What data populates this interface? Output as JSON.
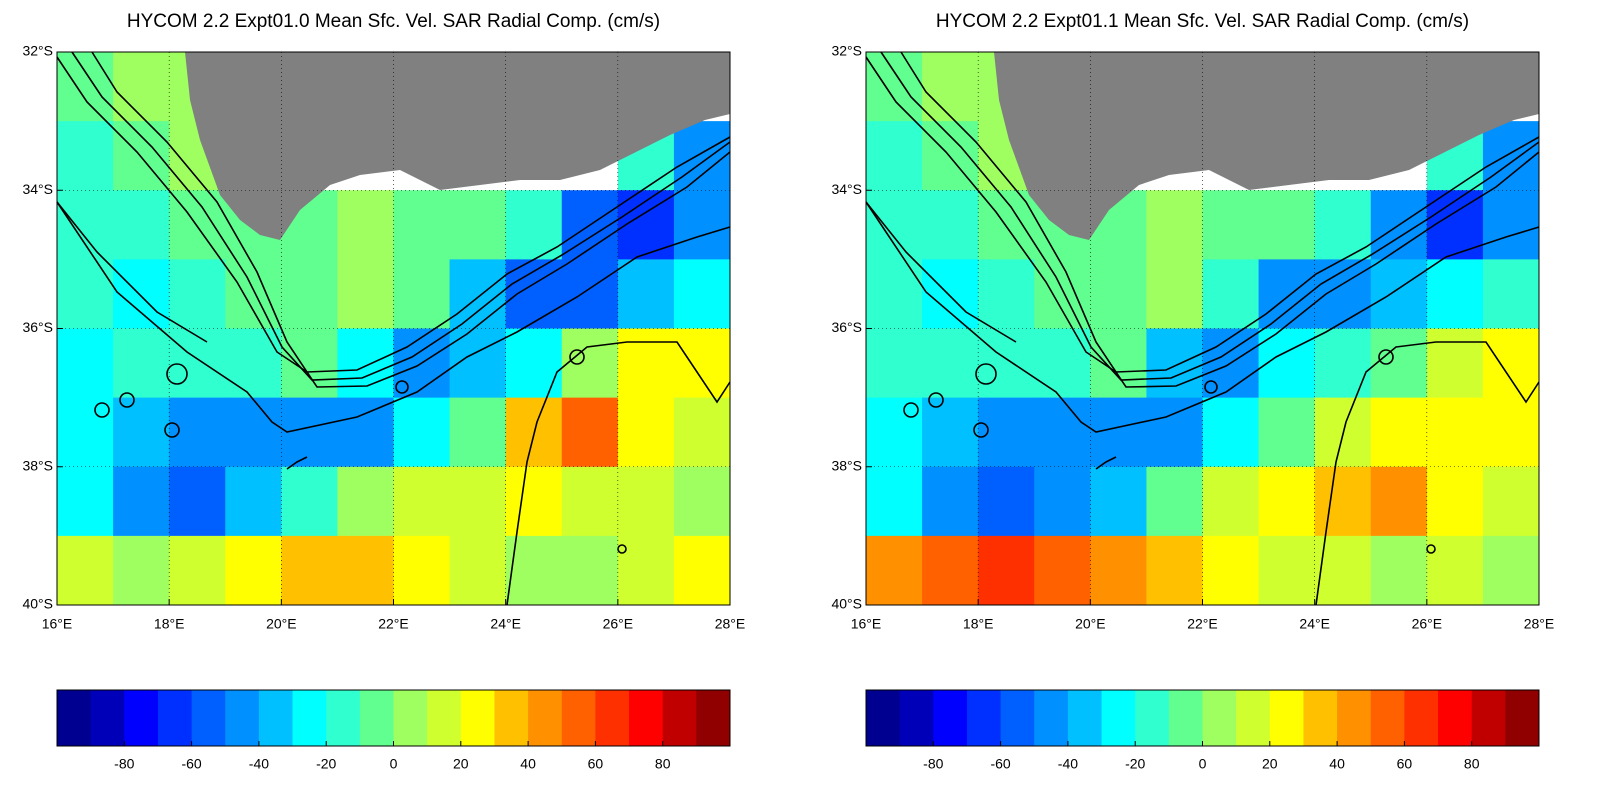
{
  "chart_data": [
    {
      "type": "heatmap",
      "title": "HYCOM 2.2 Expt01.0 Mean Sfc. Vel. SAR Radial Comp. (cm/s)",
      "xlim": [
        16,
        28
      ],
      "ylim": [
        -40,
        -32
      ],
      "grid": true,
      "xticks": [
        {
          "value": 16,
          "label": "16°E"
        },
        {
          "value": 18,
          "label": "18°E"
        },
        {
          "value": 20,
          "label": "20°E"
        },
        {
          "value": 22,
          "label": "22°E"
        },
        {
          "value": 24,
          "label": "24°E"
        },
        {
          "value": 26,
          "label": "26°E"
        },
        {
          "value": 28,
          "label": "28°E"
        }
      ],
      "yticks": [
        {
          "value": -32,
          "label": "32°S"
        },
        {
          "value": -34,
          "label": "34°S"
        },
        {
          "value": -36,
          "label": "36°S"
        },
        {
          "value": -38,
          "label": "38°S"
        },
        {
          "value": -40,
          "label": "40°S"
        }
      ],
      "values": [
        [
          -10,
          0,
          0,
          null,
          null,
          null,
          null,
          null,
          null,
          null,
          null,
          null
        ],
        [
          -15,
          -10,
          0,
          null,
          null,
          null,
          null,
          null,
          null,
          null,
          -20,
          -50
        ],
        [
          -20,
          -20,
          -10,
          -5,
          -5,
          0,
          -5,
          -10,
          -20,
          -60,
          -70,
          -50
        ],
        [
          -20,
          -25,
          -20,
          -10,
          -5,
          0,
          -10,
          -40,
          -60,
          -60,
          -40,
          -30
        ],
        [
          -25,
          -20,
          -20,
          -20,
          -5,
          -30,
          -50,
          -40,
          -30,
          0,
          20,
          20
        ],
        [
          -30,
          -40,
          -50,
          -50,
          -50,
          -50,
          -30,
          -10,
          30,
          50,
          20,
          10
        ],
        [
          -30,
          -50,
          -60,
          -40,
          -20,
          0,
          10,
          10,
          20,
          10,
          10,
          0
        ],
        [
          10,
          0,
          10,
          20,
          30,
          30,
          20,
          10,
          0,
          0,
          10,
          20
        ]
      ],
      "colorbar": {
        "lim": [
          -100,
          100
        ],
        "ticks": [
          -80,
          -60,
          -40,
          -20,
          0,
          20,
          40,
          60,
          80
        ],
        "colors": [
          "#000090",
          "#0000b8",
          "#0000ff",
          "#0030ff",
          "#0060ff",
          "#0090ff",
          "#00c0ff",
          "#00ffff",
          "#30ffd0",
          "#60ff90",
          "#a0ff60",
          "#d0ff30",
          "#ffff00",
          "#ffc000",
          "#ff9000",
          "#ff6000",
          "#ff3000",
          "#ff0000",
          "#c00000",
          "#900000"
        ]
      }
    },
    {
      "type": "heatmap",
      "title": "HYCOM 2.2 Expt01.1 Mean Sfc. Vel. SAR Radial Comp. (cm/s)",
      "xlim": [
        16,
        28
      ],
      "ylim": [
        -40,
        -32
      ],
      "grid": true,
      "xticks": [
        {
          "value": 16,
          "label": "16°E"
        },
        {
          "value": 18,
          "label": "18°E"
        },
        {
          "value": 20,
          "label": "20°E"
        },
        {
          "value": 22,
          "label": "22°E"
        },
        {
          "value": 24,
          "label": "24°E"
        },
        {
          "value": 26,
          "label": "26°E"
        },
        {
          "value": 28,
          "label": "28°E"
        }
      ],
      "yticks": [
        {
          "value": -32,
          "label": "32°S"
        },
        {
          "value": -34,
          "label": "34°S"
        },
        {
          "value": -36,
          "label": "36°S"
        },
        {
          "value": -38,
          "label": "38°S"
        },
        {
          "value": -40,
          "label": "40°S"
        }
      ],
      "values": [
        [
          -10,
          0,
          0,
          null,
          null,
          null,
          null,
          null,
          null,
          null,
          null,
          null
        ],
        [
          -15,
          -10,
          0,
          null,
          null,
          null,
          null,
          null,
          null,
          null,
          -20,
          -50
        ],
        [
          -20,
          -15,
          -10,
          -5,
          -5,
          0,
          -5,
          -10,
          -20,
          -50,
          -70,
          -50
        ],
        [
          -20,
          -25,
          -20,
          -10,
          -5,
          0,
          -20,
          -50,
          -50,
          -40,
          -30,
          -20
        ],
        [
          -20,
          -20,
          -20,
          -20,
          -10,
          -40,
          -50,
          -30,
          -20,
          -10,
          10,
          20
        ],
        [
          -30,
          -40,
          -50,
          -50,
          -50,
          -50,
          -30,
          -10,
          10,
          20,
          20,
          20
        ],
        [
          -30,
          -50,
          -60,
          -50,
          -40,
          -10,
          10,
          20,
          30,
          40,
          20,
          10
        ],
        [
          40,
          50,
          60,
          50,
          40,
          30,
          20,
          10,
          10,
          0,
          10,
          0
        ]
      ],
      "colorbar": {
        "lim": [
          -100,
          100
        ],
        "ticks": [
          -80,
          -60,
          -40,
          -20,
          0,
          20,
          40,
          60,
          80
        ],
        "colors": [
          "#000090",
          "#0000b8",
          "#0000ff",
          "#0030ff",
          "#0060ff",
          "#0090ff",
          "#00c0ff",
          "#00ffff",
          "#30ffd0",
          "#60ff90",
          "#a0ff60",
          "#d0ff30",
          "#ffff00",
          "#ffc000",
          "#ff9000",
          "#ff6000",
          "#ff3000",
          "#ff0000",
          "#c00000",
          "#900000"
        ]
      }
    }
  ]
}
